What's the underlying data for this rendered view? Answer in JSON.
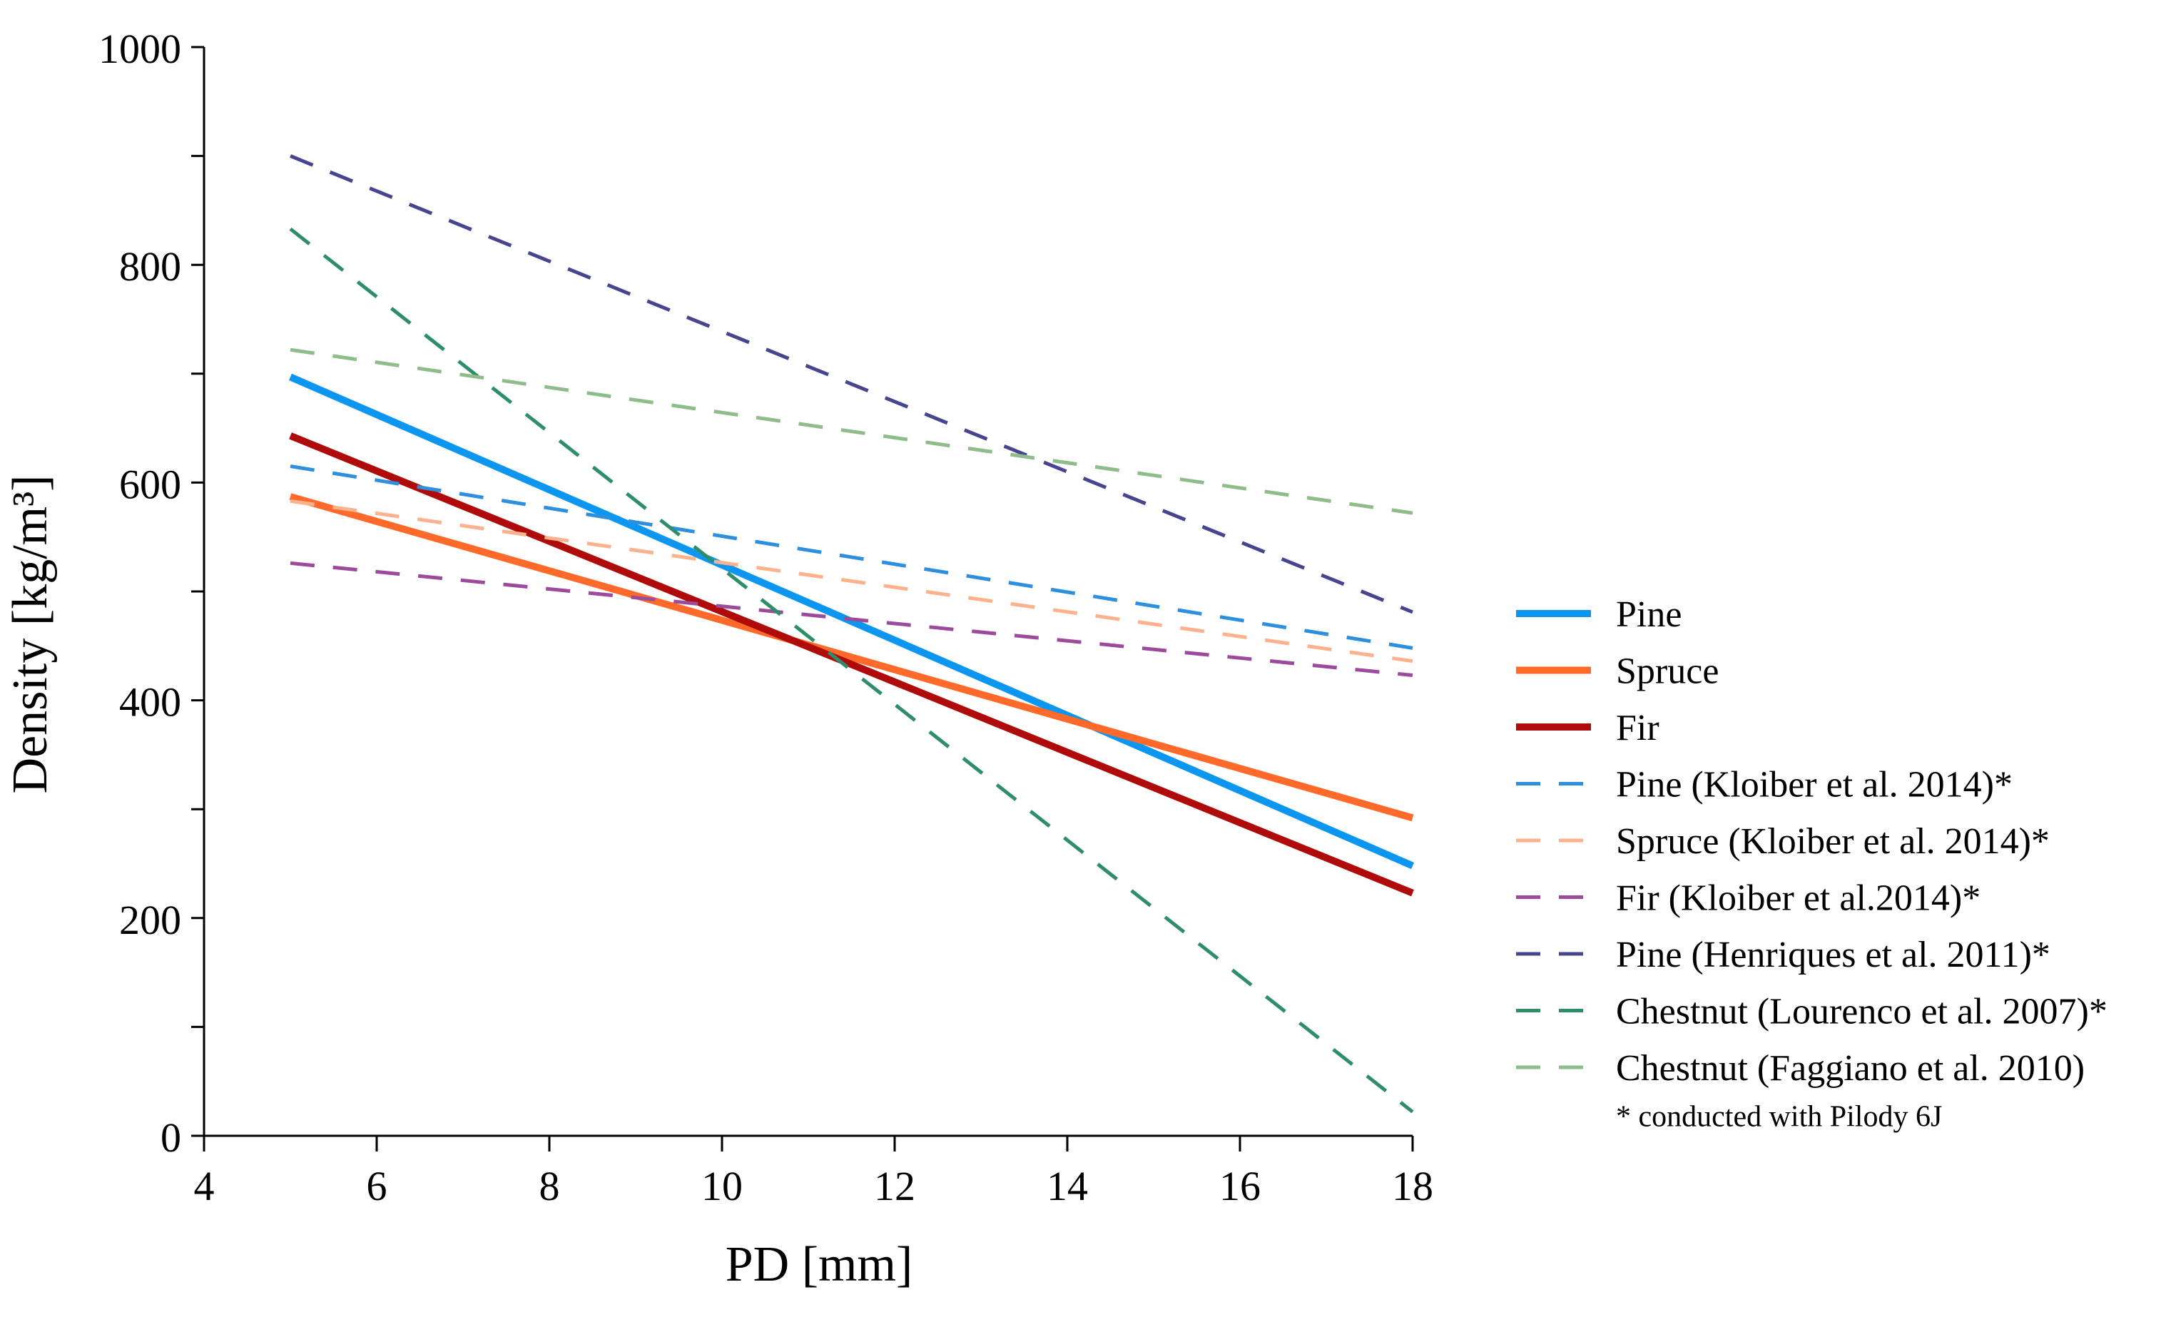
{
  "chart_data": {
    "type": "line",
    "xlabel": "PD [mm]",
    "ylabel": "Density [kg/m³]",
    "xlim": [
      4,
      18
    ],
    "ylim": [
      0,
      1000
    ],
    "x_ticks": [
      4,
      6,
      8,
      10,
      12,
      14,
      16,
      18
    ],
    "x_tick_labels": [
      "4",
      "6",
      "8",
      "10",
      "12",
      "14",
      "16",
      "18"
    ],
    "y_ticks": [
      0,
      200,
      400,
      600,
      800,
      1000
    ],
    "y_tick_labels": [
      "0",
      "200",
      "400",
      "600",
      "800",
      "1000"
    ],
    "y_minor_ticks": [
      100,
      300,
      500,
      700,
      900
    ],
    "grid": false,
    "legend_position": "right",
    "series": [
      {
        "name": "Pine",
        "x": [
          5,
          18
        ],
        "y": [
          697,
          248
        ],
        "color": "#0d96f0",
        "style": "solid"
      },
      {
        "name": "Spruce",
        "x": [
          5,
          18
        ],
        "y": [
          587,
          292
        ],
        "color": "#ff6a2a",
        "style": "solid"
      },
      {
        "name": "Fir",
        "x": [
          5,
          18
        ],
        "y": [
          643,
          223
        ],
        "color": "#b00b0b",
        "style": "solid"
      },
      {
        "name": "Pine (Kloiber et al. 2014)*",
        "x": [
          5,
          18
        ],
        "y": [
          615,
          448
        ],
        "color": "#2e8fde",
        "style": "dashed"
      },
      {
        "name": "Spruce (Kloiber et al. 2014)*",
        "x": [
          5,
          18
        ],
        "y": [
          583,
          436
        ],
        "color": "#fdb28e",
        "style": "dashed"
      },
      {
        "name": "Fir (Kloiber et al.2014)*",
        "x": [
          5,
          18
        ],
        "y": [
          526,
          423
        ],
        "color": "#9c4b9c",
        "style": "dashed"
      },
      {
        "name": "Pine (Henriques et al. 2011)*",
        "x": [
          5,
          18
        ],
        "y": [
          900,
          481
        ],
        "color": "#474590",
        "style": "dashed"
      },
      {
        "name": "Chestnut (Lourenco et al. 2007)*",
        "x": [
          5,
          18
        ],
        "y": [
          833,
          22
        ],
        "color": "#2f8e6a",
        "style": "dashed"
      },
      {
        "name": "Chestnut (Faggiano et al. 2010)",
        "x": [
          5,
          18
        ],
        "y": [
          722,
          572
        ],
        "color": "#8fbd8a",
        "style": "dashed"
      }
    ],
    "footnote": "* conducted with Pilody 6J"
  }
}
